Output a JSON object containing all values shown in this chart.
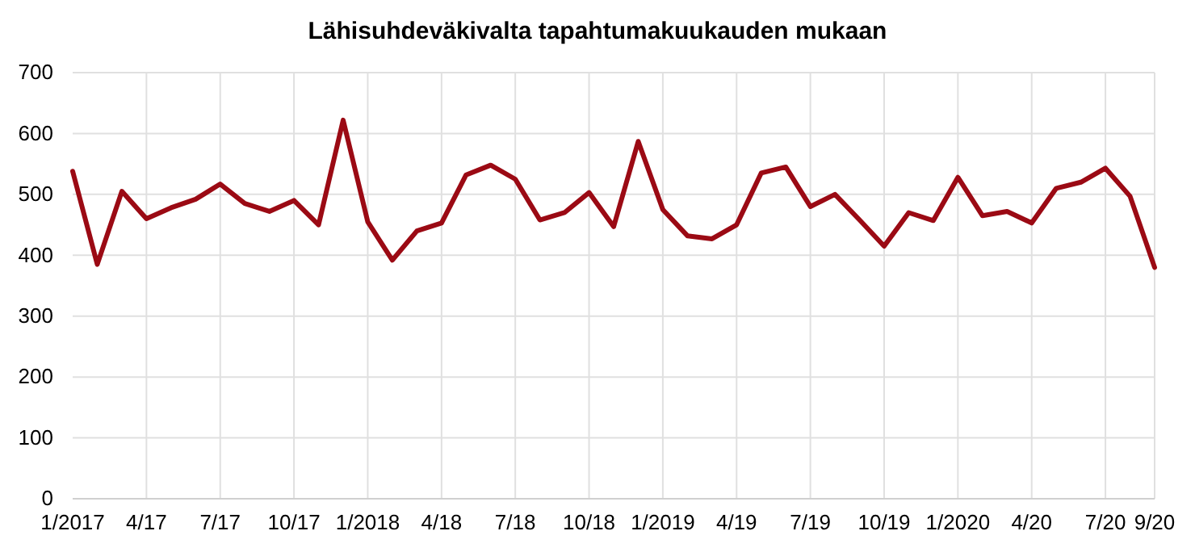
{
  "chart_data": {
    "type": "line",
    "title": "Lähisuhdeväkivalta tapahtumakuukauden mukaan",
    "categories": [
      "1/2017",
      null,
      null,
      "4/17",
      null,
      null,
      "7/17",
      null,
      null,
      "10/17",
      null,
      null,
      "1/2018",
      null,
      null,
      "4/18",
      null,
      null,
      "7/18",
      null,
      null,
      "10/18",
      null,
      null,
      "1/2019",
      null,
      null,
      "4/19",
      null,
      null,
      "7/19",
      null,
      null,
      "10/19",
      null,
      null,
      "1/2020",
      null,
      null,
      "4/20",
      null,
      null,
      "7/20",
      null,
      "9/20"
    ],
    "series": [
      {
        "color": "#9b0a14",
        "values": [
          538,
          385,
          505,
          460,
          478,
          492,
          517,
          485,
          472,
          490,
          450,
          622,
          455,
          392,
          440,
          453,
          532,
          548,
          525,
          458,
          470,
          503,
          447,
          587,
          475,
          432,
          427,
          450,
          535,
          545,
          480,
          500,
          458,
          415,
          470,
          457,
          528,
          465,
          472,
          453,
          510,
          520,
          543,
          497,
          380
        ]
      }
    ],
    "ylim": [
      0,
      700
    ],
    "yticks": [
      0,
      100,
      200,
      300,
      400,
      500,
      600,
      700
    ],
    "grid": true,
    "marker": "none",
    "line_style": "solid"
  }
}
